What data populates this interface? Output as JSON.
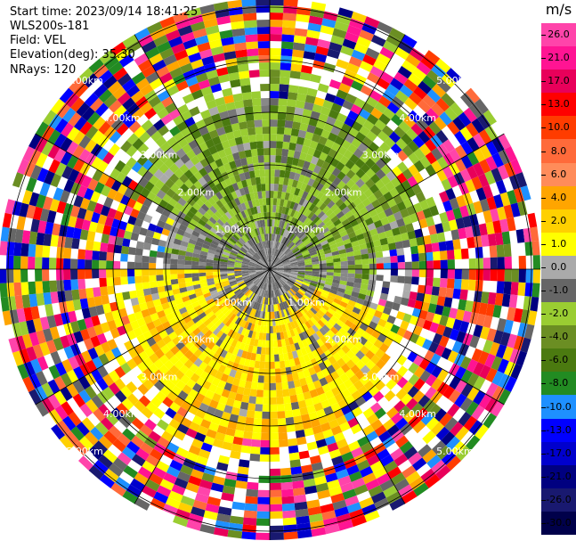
{
  "header": {
    "start_time": "Start time: 2023/09/14 18:41:25",
    "instrument": "WLS200s-181",
    "field": "Field: VEL",
    "elevation": "Elevation(deg): 35.30",
    "nrays": "NRays: 120"
  },
  "colorbar": {
    "unit": "m/s",
    "labels": [
      "26.0",
      "21.0",
      "17.0",
      "13.0",
      "10.0",
      "8.0",
      "6.0",
      "4.0",
      "2.0",
      "1.0",
      "0.0",
      "-1.0",
      "-2.0",
      "-4.0",
      "-6.0",
      "-8.0",
      "-10.0",
      "-13.0",
      "-17.0",
      "-21.0",
      "-26.0",
      "-30.0"
    ],
    "colors": [
      "#ff44aa",
      "#ff1493",
      "#e8005a",
      "#ff0000",
      "#ff3c00",
      "#ff6a3a",
      "#ff8c5a",
      "#ffa500",
      "#ffd000",
      "#ffff00",
      "#aaaaaa",
      "#666666",
      "#9acd32",
      "#6b8e23",
      "#4b7a10",
      "#228b22",
      "#1e90ff",
      "#0000ff",
      "#0000cd",
      "#000080",
      "#191970",
      "#00004a"
    ]
  },
  "range_rings": [
    {
      "label": "1.00km"
    },
    {
      "label": "2.00km"
    },
    {
      "label": "3.00km"
    },
    {
      "label": "4.00km"
    },
    {
      "label": "5.00km"
    }
  ],
  "image": {
    "description_hidden": ""
  }
}
